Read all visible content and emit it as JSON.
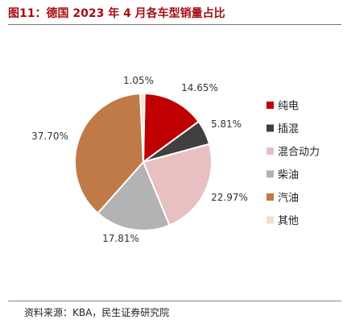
{
  "figure_title": "图11：德国 2023 年 4 月各车型销量占比",
  "source": "资料来源：KBA，民生证券研究院",
  "chart_data": {
    "type": "pie",
    "title": "",
    "slices": [
      {
        "label": "纯电",
        "value": 14.65,
        "value_label": "14.65%",
        "color": "#c00000"
      },
      {
        "label": "插混",
        "value": 5.81,
        "value_label": "5.81%",
        "color": "#404040"
      },
      {
        "label": "混合动力",
        "value": 22.97,
        "value_label": "22.97%",
        "color": "#e8c0c1"
      },
      {
        "label": "柴油",
        "value": 17.81,
        "value_label": "17.81%",
        "color": "#b3b3b3"
      },
      {
        "label": "汽油",
        "value": 37.7,
        "value_label": "37.70%",
        "color": "#bf7a48"
      },
      {
        "label": "其他",
        "value": 1.05,
        "value_label": "1.05%",
        "color": "#efe2c3"
      }
    ],
    "legend_position": "right"
  }
}
